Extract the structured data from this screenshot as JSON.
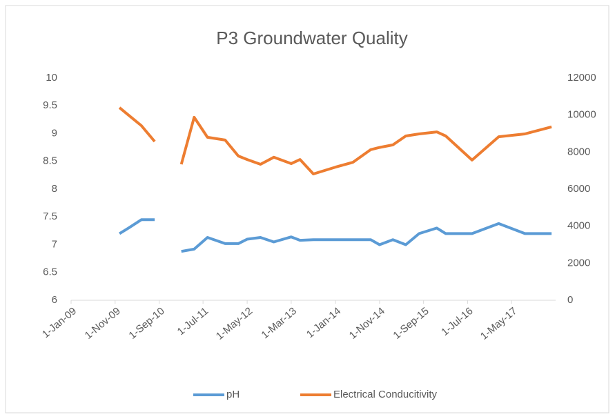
{
  "chart_data": {
    "type": "line",
    "title": "P3 Groundwater Quality",
    "x": [
      "2009-12-01",
      "2010-02-01",
      "2010-05-01",
      "2010-08-01",
      "2010-11-01",
      "2011-02-01",
      "2011-05-01",
      "2011-08-01",
      "2011-12-01",
      "2012-03-01",
      "2012-05-01",
      "2012-08-01",
      "2012-11-01",
      "2013-03-01",
      "2013-05-01",
      "2013-08-01",
      "2014-01-01",
      "2014-05-01",
      "2014-09-01",
      "2014-11-01",
      "2015-02-01",
      "2015-05-01",
      "2015-08-01",
      "2015-12-01",
      "2016-02-01",
      "2016-08-01",
      "2017-02-01",
      "2017-08-01",
      "2018-02-01"
    ],
    "series": [
      {
        "name": "pH",
        "color": "#5b9bd5",
        "axis": "y",
        "values": [
          7.2,
          7.3,
          7.45,
          7.45,
          null,
          6.88,
          6.92,
          7.13,
          7.02,
          7.02,
          7.1,
          7.13,
          7.05,
          7.14,
          7.08,
          7.09,
          7.09,
          7.09,
          7.09,
          7.0,
          7.09,
          7.0,
          7.2,
          7.3,
          7.2,
          7.2,
          7.38,
          7.2,
          7.2
        ]
      },
      {
        "name": "Electrical Conducitivity",
        "color": "#ed7d31",
        "axis": "y2",
        "values": [
          10400,
          10000,
          9430,
          8570,
          null,
          7340,
          9880,
          8800,
          8650,
          7790,
          7600,
          7340,
          7720,
          7380,
          7600,
          6820,
          7190,
          7450,
          8130,
          8250,
          8390,
          8870,
          8980,
          9090,
          8870,
          7570,
          8830,
          8980,
          9360
        ]
      }
    ],
    "xlim": [
      "2009-01-01",
      "2018-03-01"
    ],
    "xticks": [
      {
        "value": "2009-01-01",
        "label": "1-Jan-09"
      },
      {
        "value": "2009-11-01",
        "label": "1-Nov-09"
      },
      {
        "value": "2010-09-01",
        "label": "1-Sep-10"
      },
      {
        "value": "2011-07-01",
        "label": "1-Jul-11"
      },
      {
        "value": "2012-05-01",
        "label": "1-May-12"
      },
      {
        "value": "2013-03-01",
        "label": "1-Mar-13"
      },
      {
        "value": "2014-01-01",
        "label": "1-Jan-14"
      },
      {
        "value": "2014-11-01",
        "label": "1-Nov-14"
      },
      {
        "value": "2015-09-01",
        "label": "1-Sep-15"
      },
      {
        "value": "2016-07-01",
        "label": "1-Jul-16"
      },
      {
        "value": "2017-05-01",
        "label": "1-May-17"
      }
    ],
    "ylim": [
      6,
      10
    ],
    "yticks": [
      6,
      6.5,
      7,
      7.5,
      8,
      8.5,
      9,
      9.5,
      10
    ],
    "y2lim": [
      0,
      12000
    ],
    "y2ticks": [
      0,
      2000,
      4000,
      6000,
      8000,
      10000,
      12000
    ],
    "legend": "bottom"
  }
}
